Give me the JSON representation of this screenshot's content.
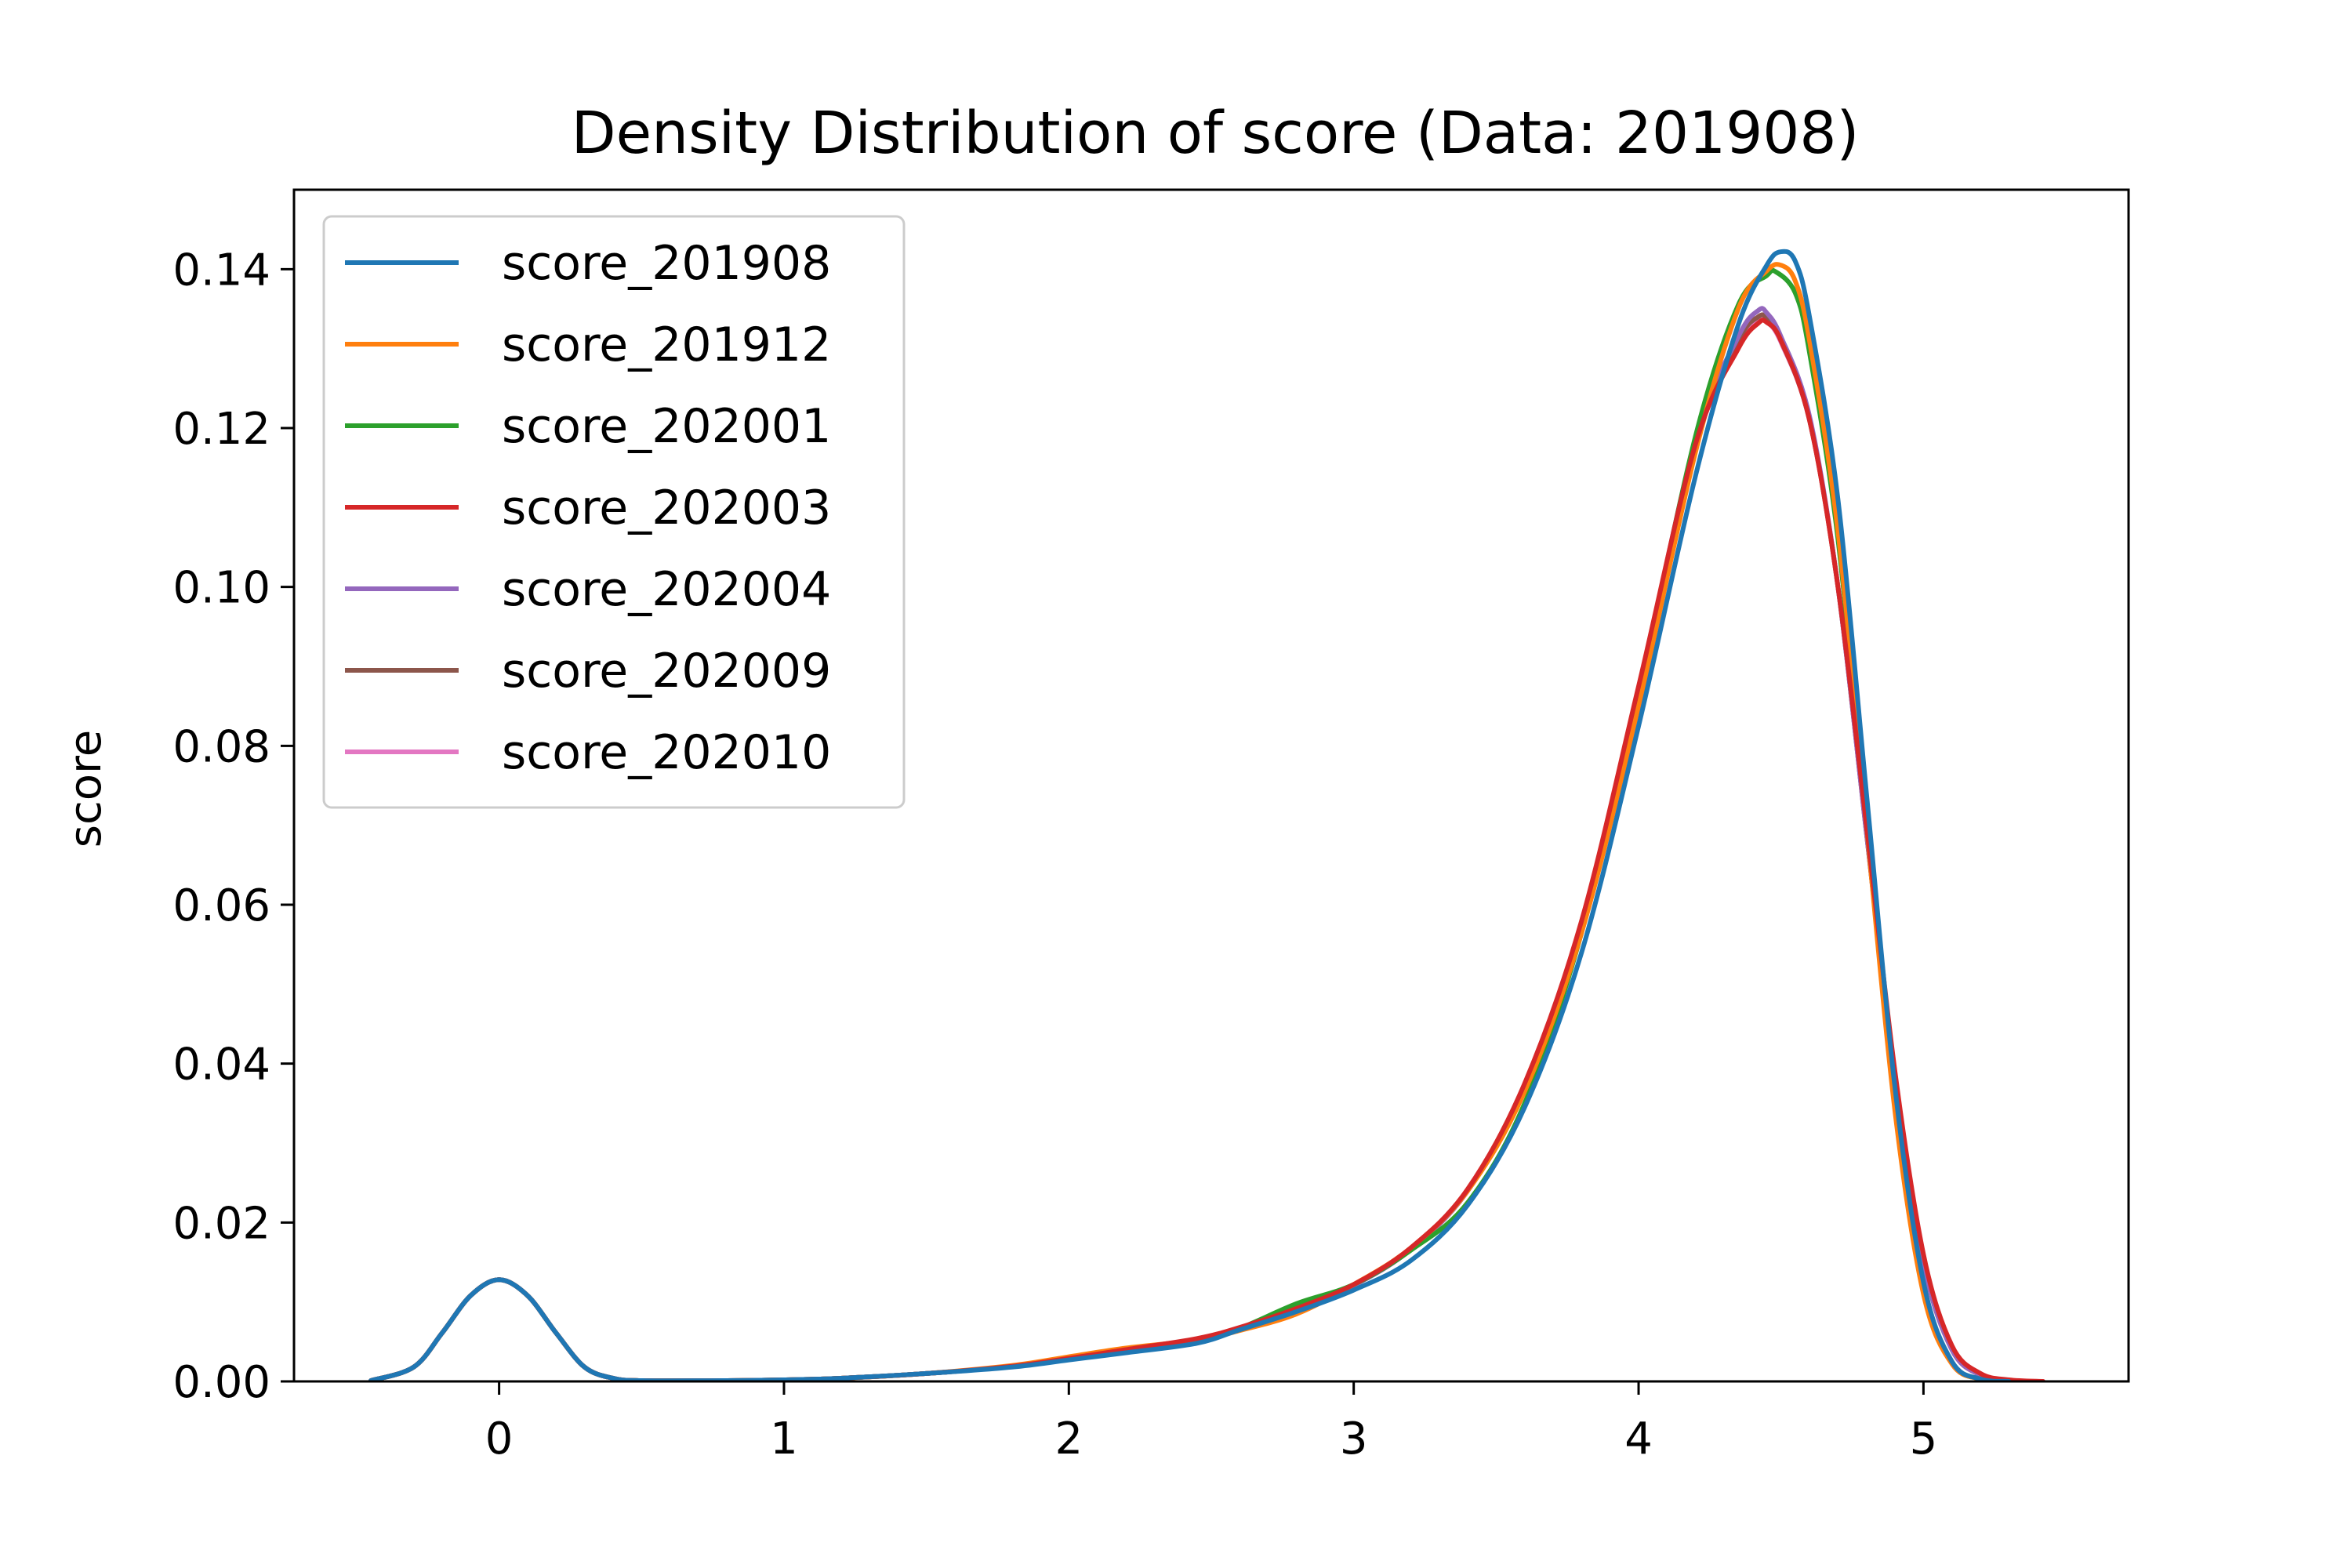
{
  "chart_data": {
    "type": "line",
    "title": "Density Distribution of score (Data: 201908)",
    "xlabel": "",
    "ylabel": "score",
    "xlim": [
      -0.72,
      5.72
    ],
    "ylim": [
      0,
      0.15
    ],
    "xticks": [
      0,
      1,
      2,
      3,
      4,
      5
    ],
    "xtick_labels": [
      "0",
      "1",
      "2",
      "3",
      "4",
      "5"
    ],
    "yticks": [
      0,
      0.02,
      0.04,
      0.06,
      0.08,
      0.1,
      0.12,
      0.14
    ],
    "ytick_labels": [
      "0.00",
      "0.02",
      "0.04",
      "0.06",
      "0.08",
      "0.10",
      "0.12",
      "0.14"
    ],
    "grid": false,
    "legend_position": "top-left",
    "series": [
      {
        "name": "score_201908",
        "color": "#1f77b4",
        "points": [
          [
            -0.45,
            0.0001
          ],
          [
            -0.3,
            0.0018
          ],
          [
            -0.2,
            0.0061
          ],
          [
            -0.1,
            0.0108
          ],
          [
            0.0,
            0.0128
          ],
          [
            0.1,
            0.0108
          ],
          [
            0.2,
            0.0061
          ],
          [
            0.3,
            0.0018
          ],
          [
            0.4,
            0.0004
          ],
          [
            0.5,
            0.0001
          ],
          [
            0.8,
            0.0001
          ],
          [
            1.0,
            0.0002
          ],
          [
            1.2,
            0.0004
          ],
          [
            1.5,
            0.001
          ],
          [
            1.8,
            0.0018
          ],
          [
            2.0,
            0.0027
          ],
          [
            2.2,
            0.0036
          ],
          [
            2.45,
            0.0048
          ],
          [
            2.6,
            0.0065
          ],
          [
            2.8,
            0.0088
          ],
          [
            3.0,
            0.0115
          ],
          [
            3.2,
            0.0152
          ],
          [
            3.4,
            0.0222
          ],
          [
            3.6,
            0.0345
          ],
          [
            3.8,
            0.054
          ],
          [
            4.0,
            0.0825
          ],
          [
            4.2,
            0.114
          ],
          [
            4.35,
            0.133
          ],
          [
            4.45,
            0.1405
          ],
          [
            4.5,
            0.1422
          ],
          [
            4.55,
            0.141
          ],
          [
            4.6,
            0.134
          ],
          [
            4.7,
            0.111
          ],
          [
            4.8,
            0.074
          ],
          [
            4.9,
            0.037
          ],
          [
            5.0,
            0.0125
          ],
          [
            5.1,
            0.0025
          ],
          [
            5.2,
            0.0003
          ],
          [
            5.3,
            0.0
          ]
        ]
      },
      {
        "name": "score_201912",
        "color": "#ff7f0e",
        "points": [
          [
            -0.45,
            0.0001
          ],
          [
            -0.3,
            0.0018
          ],
          [
            -0.2,
            0.0061
          ],
          [
            -0.1,
            0.0108
          ],
          [
            0.0,
            0.0128
          ],
          [
            0.1,
            0.0108
          ],
          [
            0.2,
            0.0061
          ],
          [
            0.3,
            0.0018
          ],
          [
            0.4,
            0.0004
          ],
          [
            0.5,
            0.0001
          ],
          [
            0.8,
            0.0001
          ],
          [
            1.0,
            0.0002
          ],
          [
            1.2,
            0.0004
          ],
          [
            1.5,
            0.001
          ],
          [
            1.8,
            0.002
          ],
          [
            2.0,
            0.0031
          ],
          [
            2.2,
            0.0042
          ],
          [
            2.45,
            0.0052
          ],
          [
            2.6,
            0.0064
          ],
          [
            2.8,
            0.0085
          ],
          [
            3.0,
            0.0122
          ],
          [
            3.2,
            0.0168
          ],
          [
            3.4,
            0.024
          ],
          [
            3.6,
            0.0365
          ],
          [
            3.8,
            0.0565
          ],
          [
            4.0,
            0.085
          ],
          [
            4.2,
            0.117
          ],
          [
            4.35,
            0.135
          ],
          [
            4.45,
            0.1398
          ],
          [
            4.5,
            0.1405
          ],
          [
            4.55,
            0.1385
          ],
          [
            4.6,
            0.131
          ],
          [
            4.7,
            0.107
          ],
          [
            4.8,
            0.07
          ],
          [
            4.9,
            0.034
          ],
          [
            5.0,
            0.011
          ],
          [
            5.1,
            0.0022
          ],
          [
            5.2,
            0.0003
          ],
          [
            5.3,
            0.0
          ]
        ]
      },
      {
        "name": "score_202001",
        "color": "#2ca02c",
        "points": [
          [
            -0.45,
            0.0001
          ],
          [
            -0.3,
            0.0018
          ],
          [
            -0.2,
            0.0061
          ],
          [
            -0.1,
            0.0108
          ],
          [
            0.0,
            0.0128
          ],
          [
            0.1,
            0.0108
          ],
          [
            0.2,
            0.0061
          ],
          [
            0.3,
            0.0018
          ],
          [
            0.4,
            0.0004
          ],
          [
            0.5,
            0.0001
          ],
          [
            0.8,
            0.0001
          ],
          [
            1.0,
            0.0002
          ],
          [
            1.2,
            0.0004
          ],
          [
            1.5,
            0.001
          ],
          [
            1.8,
            0.0019
          ],
          [
            2.0,
            0.0029
          ],
          [
            2.2,
            0.004
          ],
          [
            2.45,
            0.0052
          ],
          [
            2.6,
            0.0067
          ],
          [
            2.8,
            0.0098
          ],
          [
            3.0,
            0.0122
          ],
          [
            3.2,
            0.0165
          ],
          [
            3.4,
            0.0225
          ],
          [
            3.6,
            0.035
          ],
          [
            3.8,
            0.0565
          ],
          [
            4.0,
            0.0865
          ],
          [
            4.2,
            0.119
          ],
          [
            4.35,
            0.1355
          ],
          [
            4.45,
            0.1392
          ],
          [
            4.48,
            0.1397
          ],
          [
            4.55,
            0.137
          ],
          [
            4.6,
            0.1295
          ],
          [
            4.7,
            0.106
          ],
          [
            4.8,
            0.07
          ],
          [
            4.9,
            0.035
          ],
          [
            5.0,
            0.0115
          ],
          [
            5.1,
            0.0023
          ],
          [
            5.2,
            0.0003
          ],
          [
            5.3,
            0.0
          ]
        ]
      },
      {
        "name": "score_202003",
        "color": "#d62728",
        "points": [
          [
            -0.45,
            0.0001
          ],
          [
            -0.3,
            0.0018
          ],
          [
            -0.2,
            0.0061
          ],
          [
            -0.1,
            0.0108
          ],
          [
            0.0,
            0.0128
          ],
          [
            0.1,
            0.0108
          ],
          [
            0.2,
            0.0061
          ],
          [
            0.3,
            0.0018
          ],
          [
            0.4,
            0.0004
          ],
          [
            0.5,
            0.0001
          ],
          [
            0.8,
            0.0001
          ],
          [
            1.0,
            0.0002
          ],
          [
            1.2,
            0.0004
          ],
          [
            1.5,
            0.001
          ],
          [
            1.8,
            0.0019
          ],
          [
            2.0,
            0.0029
          ],
          [
            2.2,
            0.004
          ],
          [
            2.45,
            0.0054
          ],
          [
            2.6,
            0.0068
          ],
          [
            2.8,
            0.0092
          ],
          [
            3.0,
            0.0122
          ],
          [
            3.2,
            0.0168
          ],
          [
            3.4,
            0.0242
          ],
          [
            3.6,
            0.0375
          ],
          [
            3.8,
            0.058
          ],
          [
            4.0,
            0.0875
          ],
          [
            4.2,
            0.118
          ],
          [
            4.35,
            0.13
          ],
          [
            4.42,
            0.1332
          ],
          [
            4.45,
            0.1333
          ],
          [
            4.5,
            0.131
          ],
          [
            4.6,
            0.121
          ],
          [
            4.7,
            0.1
          ],
          [
            4.8,
            0.07
          ],
          [
            4.9,
            0.039
          ],
          [
            5.0,
            0.016
          ],
          [
            5.1,
            0.0045
          ],
          [
            5.2,
            0.001
          ],
          [
            5.3,
            0.0002
          ],
          [
            5.42,
            0.0
          ]
        ]
      },
      {
        "name": "score_202004",
        "color": "#9467bd",
        "points": [
          [
            -0.45,
            0.0001
          ],
          [
            -0.3,
            0.0018
          ],
          [
            -0.2,
            0.0061
          ],
          [
            -0.1,
            0.0108
          ],
          [
            0.0,
            0.0128
          ],
          [
            0.1,
            0.0108
          ],
          [
            0.2,
            0.0061
          ],
          [
            0.3,
            0.0018
          ],
          [
            0.4,
            0.0004
          ],
          [
            0.5,
            0.0001
          ],
          [
            0.8,
            0.0001
          ],
          [
            1.0,
            0.0002
          ],
          [
            1.2,
            0.0004
          ],
          [
            1.5,
            0.001
          ],
          [
            1.8,
            0.0019
          ],
          [
            2.0,
            0.0029
          ],
          [
            2.2,
            0.004
          ],
          [
            2.45,
            0.0053
          ],
          [
            2.6,
            0.0067
          ],
          [
            2.8,
            0.0091
          ],
          [
            3.0,
            0.0121
          ],
          [
            3.2,
            0.0166
          ],
          [
            3.4,
            0.024
          ],
          [
            3.6,
            0.037
          ],
          [
            3.8,
            0.0575
          ],
          [
            4.0,
            0.087
          ],
          [
            4.2,
            0.1185
          ],
          [
            4.35,
            0.1315
          ],
          [
            4.42,
            0.1348
          ],
          [
            4.45,
            0.1345
          ],
          [
            4.5,
            0.1315
          ],
          [
            4.6,
            0.1215
          ],
          [
            4.7,
            0.1
          ],
          [
            4.8,
            0.069
          ],
          [
            4.9,
            0.038
          ],
          [
            5.0,
            0.015
          ],
          [
            5.1,
            0.004
          ],
          [
            5.2,
            0.0008
          ],
          [
            5.3,
            0.0001
          ],
          [
            5.4,
            0.0
          ]
        ]
      },
      {
        "name": "score_202009",
        "color": "#8c564b",
        "points": [
          [
            -0.45,
            0.0001
          ],
          [
            -0.3,
            0.0018
          ],
          [
            -0.2,
            0.0061
          ],
          [
            -0.1,
            0.0108
          ],
          [
            0.0,
            0.0128
          ],
          [
            0.1,
            0.0108
          ],
          [
            0.2,
            0.0061
          ],
          [
            0.3,
            0.0018
          ],
          [
            0.4,
            0.0004
          ],
          [
            0.5,
            0.0001
          ],
          [
            0.8,
            0.0001
          ],
          [
            1.0,
            0.0002
          ],
          [
            1.2,
            0.0004
          ],
          [
            1.5,
            0.001
          ],
          [
            1.8,
            0.0019
          ],
          [
            2.0,
            0.0029
          ],
          [
            2.2,
            0.004
          ],
          [
            2.45,
            0.0053
          ],
          [
            2.6,
            0.0067
          ],
          [
            2.8,
            0.0091
          ],
          [
            3.0,
            0.0121
          ],
          [
            3.2,
            0.0166
          ],
          [
            3.4,
            0.024
          ],
          [
            3.6,
            0.037
          ],
          [
            3.8,
            0.0575
          ],
          [
            4.0,
            0.087
          ],
          [
            4.2,
            0.1182
          ],
          [
            4.35,
            0.131
          ],
          [
            4.42,
            0.134
          ],
          [
            4.45,
            0.1338
          ],
          [
            4.5,
            0.131
          ],
          [
            4.6,
            0.121
          ],
          [
            4.7,
            0.1
          ],
          [
            4.8,
            0.069
          ],
          [
            4.9,
            0.038
          ],
          [
            5.0,
            0.015
          ],
          [
            5.1,
            0.004
          ],
          [
            5.2,
            0.0008
          ],
          [
            5.3,
            0.0001
          ],
          [
            5.4,
            0.0
          ]
        ]
      },
      {
        "name": "score_202010",
        "color": "#e377c2",
        "points": [
          [
            -0.45,
            0.0001
          ],
          [
            -0.3,
            0.0018
          ],
          [
            -0.2,
            0.0061
          ],
          [
            -0.1,
            0.0108
          ],
          [
            0.0,
            0.0128
          ],
          [
            0.1,
            0.0108
          ],
          [
            0.2,
            0.0061
          ],
          [
            0.3,
            0.0018
          ],
          [
            0.4,
            0.0004
          ],
          [
            0.5,
            0.0001
          ],
          [
            0.8,
            0.0001
          ],
          [
            1.0,
            0.0002
          ],
          [
            1.2,
            0.0004
          ],
          [
            1.5,
            0.001
          ],
          [
            1.8,
            0.0019
          ],
          [
            2.0,
            0.0029
          ],
          [
            2.2,
            0.004
          ],
          [
            2.45,
            0.0053
          ],
          [
            2.6,
            0.0067
          ],
          [
            2.8,
            0.0091
          ],
          [
            3.0,
            0.0121
          ],
          [
            3.2,
            0.0166
          ],
          [
            3.4,
            0.024
          ],
          [
            3.6,
            0.037
          ],
          [
            3.8,
            0.0575
          ],
          [
            4.0,
            0.087
          ],
          [
            4.2,
            0.118
          ],
          [
            4.35,
            0.1305
          ],
          [
            4.42,
            0.1335
          ],
          [
            4.45,
            0.1334
          ],
          [
            4.5,
            0.1308
          ],
          [
            4.6,
            0.121
          ],
          [
            4.7,
            0.1
          ],
          [
            4.8,
            0.069
          ],
          [
            4.9,
            0.038
          ],
          [
            5.0,
            0.015
          ],
          [
            5.1,
            0.004
          ],
          [
            5.2,
            0.0008
          ],
          [
            5.3,
            0.0001
          ],
          [
            5.4,
            0.0
          ]
        ]
      }
    ],
    "draw_order": [
      "score_202010",
      "score_202009",
      "score_202004",
      "score_202001",
      "score_201912",
      "score_202003",
      "score_201908"
    ]
  }
}
